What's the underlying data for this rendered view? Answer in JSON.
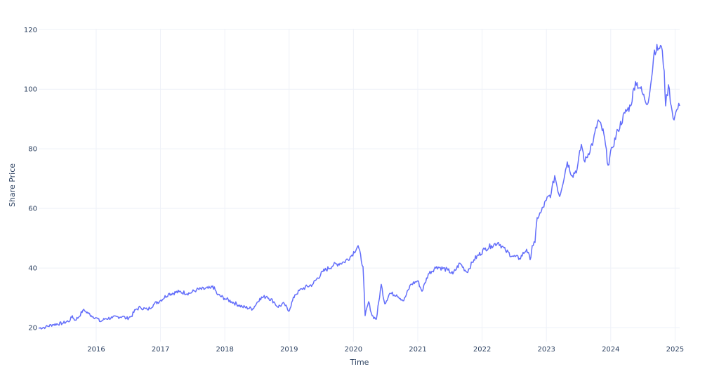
{
  "chart_data": {
    "type": "line",
    "title": "",
    "xlabel": "Time",
    "ylabel": "Share Price",
    "xlim": [
      2015.105,
      2025.072
    ],
    "ylim": [
      15.3,
      120.3
    ],
    "x_ticks": [
      2016,
      2017,
      2018,
      2019,
      2020,
      2021,
      2022,
      2023,
      2024,
      2025
    ],
    "x_tick_labels": [
      "2016",
      "2017",
      "2018",
      "2019",
      "2020",
      "2021",
      "2022",
      "2023",
      "2024",
      "2025"
    ],
    "y_ticks": [
      20,
      40,
      60,
      80,
      100,
      120
    ],
    "y_tick_labels": [
      "20",
      "40",
      "60",
      "80",
      "100",
      "120"
    ],
    "grid": true,
    "legend": "none",
    "line_color": "#636efa",
    "series": [
      {
        "name": "Share Price",
        "x": [
          2015.105,
          2015.214,
          2015.323,
          2015.487,
          2015.596,
          2015.629,
          2015.662,
          2015.727,
          2015.793,
          2015.836,
          2015.924,
          2016.0,
          2016.066,
          2016.142,
          2016.251,
          2016.415,
          2016.469,
          2016.546,
          2016.611,
          2016.688,
          2016.797,
          2016.906,
          2016.993,
          2017.124,
          2017.288,
          2017.452,
          2017.561,
          2017.779,
          2017.812,
          2017.889,
          2017.998,
          2018.107,
          2018.271,
          2018.434,
          2018.544,
          2018.653,
          2018.762,
          2018.817,
          2018.926,
          2018.991,
          2019.09,
          2019.199,
          2019.362,
          2019.526,
          2019.69,
          2019.854,
          2019.963,
          2020.072,
          2020.148,
          2020.181,
          2020.236,
          2020.29,
          2020.356,
          2020.432,
          2020.487,
          2020.563,
          2020.672,
          2020.782,
          2020.891,
          2021.0,
          2021.066,
          2021.164,
          2021.295,
          2021.469,
          2021.546,
          2021.655,
          2021.764,
          2021.873,
          2022.037,
          2022.146,
          2022.255,
          2022.365,
          2022.474,
          2022.583,
          2022.692,
          2022.747,
          2022.78,
          2022.823,
          2022.856,
          2022.911,
          2022.998,
          2023.074,
          2023.129,
          2023.205,
          2023.325,
          2023.402,
          2023.478,
          2023.544,
          2023.598,
          2023.729,
          2023.806,
          2023.893,
          2023.959,
          2024.024,
          2024.112,
          2024.221,
          2024.308,
          2024.384,
          2024.461,
          2024.526,
          2024.57,
          2024.635,
          2024.679,
          2024.745,
          2024.788,
          2024.832,
          2024.854,
          2024.897,
          2024.941,
          2024.985,
          2025.028,
          2025.072
        ],
        "y": [
          19.8,
          20.2,
          21.0,
          21.5,
          22.5,
          24.0,
          22.5,
          23.5,
          25.8,
          25.5,
          24.0,
          23.3,
          22.0,
          23.0,
          23.3,
          23.8,
          23.0,
          23.8,
          26.0,
          26.8,
          26.0,
          28.0,
          29.0,
          31.3,
          32.0,
          31.5,
          32.7,
          33.2,
          34.0,
          31.0,
          29.8,
          28.7,
          27.0,
          26.3,
          29.8,
          30.5,
          28.7,
          27.0,
          28.0,
          25.5,
          31.0,
          33.0,
          34.5,
          38.8,
          41.0,
          42.0,
          44.0,
          47.5,
          40.5,
          24.0,
          28.7,
          24.0,
          22.8,
          34.5,
          28.0,
          31.5,
          31.0,
          29.0,
          34.5,
          35.7,
          32.2,
          38.0,
          40.5,
          39.3,
          38.0,
          41.6,
          38.6,
          42.8,
          46.3,
          47.5,
          48.6,
          45.8,
          44.0,
          43.2,
          46.3,
          42.8,
          47.5,
          48.6,
          56.9,
          58.5,
          62.7,
          65.0,
          71.0,
          64.0,
          75.6,
          71.0,
          73.3,
          81.5,
          75.6,
          82.7,
          89.7,
          85.0,
          74.5,
          80.4,
          86.2,
          92.0,
          94.4,
          102.6,
          100.3,
          96.8,
          94.9,
          103.8,
          113.2,
          113.7,
          114.4,
          106.1,
          94.4,
          101.5,
          94.4,
          89.7,
          93.2,
          94.4
        ]
      }
    ]
  }
}
